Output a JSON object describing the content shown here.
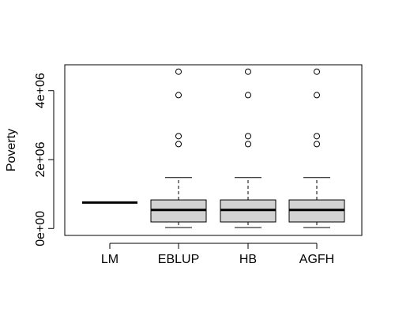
{
  "chart_data": {
    "type": "boxplot",
    "title": "",
    "xlabel": "",
    "ylabel": "Poverty",
    "ylim": [
      -200000,
      4750000
    ],
    "y_ticks": [
      {
        "value": 0,
        "label": "0e+00"
      },
      {
        "value": 2000000,
        "label": "2e+06"
      },
      {
        "value": 4000000,
        "label": "4e+06"
      }
    ],
    "categories": [
      "LM",
      "EBLUP",
      "HB",
      "AGFH"
    ],
    "boxes": [
      {
        "name": "LM",
        "whisker_low": 740000,
        "q1": 750000,
        "median": 755000,
        "q3": 760000,
        "whisker_high": 770000,
        "outliers": []
      },
      {
        "name": "EBLUP",
        "whisker_low": 30000,
        "q1": 190000,
        "median": 540000,
        "q3": 830000,
        "whisker_high": 1480000,
        "outliers": [
          2450000,
          2680000,
          3870000,
          4550000
        ]
      },
      {
        "name": "HB",
        "whisker_low": 30000,
        "q1": 190000,
        "median": 540000,
        "q3": 830000,
        "whisker_high": 1480000,
        "outliers": [
          2450000,
          2680000,
          3870000,
          4550000
        ]
      },
      {
        "name": "AGFH",
        "whisker_low": 30000,
        "q1": 190000,
        "median": 540000,
        "q3": 830000,
        "whisker_high": 1480000,
        "outliers": [
          2450000,
          2680000,
          3870000,
          4550000
        ]
      }
    ],
    "grid": false,
    "legend": "none",
    "colors": {
      "box_fill": "#d3d3d3",
      "stroke": "#000000",
      "background": "#ffffff"
    }
  }
}
